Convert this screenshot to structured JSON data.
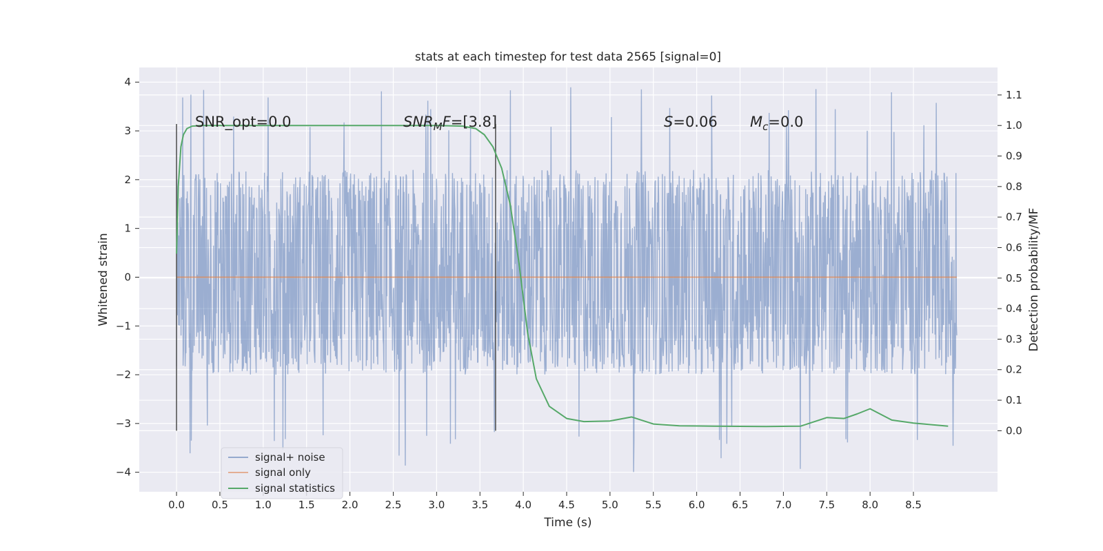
{
  "chart_data": {
    "type": "line",
    "title": "stats at each timestep for test data 2565 [signal=0]",
    "xlabel": "Time (s)",
    "ylabel": "Whitened strain",
    "y2label": "Detection probability/MF",
    "xlim": [
      -0.43,
      9.47
    ],
    "ylim": [
      -4.4,
      4.3
    ],
    "y2lim": [
      -0.2,
      1.19
    ],
    "xticks": [
      0.0,
      0.5,
      1.0,
      1.5,
      2.0,
      2.5,
      3.0,
      3.5,
      4.0,
      4.5,
      5.0,
      5.5,
      6.0,
      6.5,
      7.0,
      7.5,
      8.0,
      8.5
    ],
    "xtick_labels": [
      "0.0",
      "0.5",
      "1.0",
      "1.5",
      "2.0",
      "2.5",
      "3.0",
      "3.5",
      "4.0",
      "4.5",
      "5.0",
      "5.5",
      "6.0",
      "6.5",
      "7.0",
      "7.5",
      "8.0",
      "8.5"
    ],
    "yticks": [
      -4,
      -3,
      -2,
      -1,
      0,
      1,
      2,
      3,
      4
    ],
    "ytick_labels": [
      "−4",
      "−3",
      "−2",
      "−1",
      "0",
      "1",
      "2",
      "3",
      "4"
    ],
    "y2ticks": [
      0.0,
      0.1,
      0.2,
      0.3,
      0.4,
      0.5,
      0.6,
      0.7,
      0.8,
      0.9,
      1.0,
      1.1
    ],
    "y2tick_labels": [
      "0.0",
      "0.1",
      "0.2",
      "0.3",
      "0.4",
      "0.5",
      "0.6",
      "0.7",
      "0.8",
      "0.9",
      "1.0",
      "1.1"
    ],
    "grid": true,
    "legend_position": "lower-left",
    "colors": {
      "plot_bg": "#eaeaf2",
      "grid": "#ffffff",
      "noise": "#4c72b0",
      "signal": "#dd8452",
      "stats": "#55a868",
      "vline": "#555555"
    },
    "series": [
      {
        "name": "signal+ noise",
        "axis": "left",
        "x_range": [
          0.0,
          9.0
        ],
        "envelope_typical": [
          -2.0,
          2.2
        ],
        "peak_range": [
          -4.0,
          3.9
        ]
      },
      {
        "name": "signal only",
        "axis": "left",
        "x": [
          0.0,
          9.0
        ],
        "y": [
          0.0,
          0.0
        ]
      },
      {
        "name": "signal statistics",
        "axis": "right",
        "x": [
          0.0,
          0.02,
          0.05,
          0.08,
          0.12,
          0.18,
          0.3,
          1.0,
          2.0,
          3.0,
          3.3,
          3.45,
          3.55,
          3.65,
          3.75,
          3.85,
          3.95,
          4.05,
          4.15,
          4.3,
          4.5,
          4.7,
          5.0,
          5.25,
          5.5,
          5.8,
          6.2,
          6.8,
          7.2,
          7.5,
          7.7,
          7.85,
          8.0,
          8.25,
          8.5,
          8.9
        ],
        "y": [
          0.58,
          0.8,
          0.93,
          0.97,
          0.99,
          0.998,
          1.0,
          1.0,
          1.0,
          1.0,
          0.998,
          0.99,
          0.97,
          0.93,
          0.86,
          0.74,
          0.55,
          0.32,
          0.17,
          0.08,
          0.04,
          0.03,
          0.032,
          0.045,
          0.022,
          0.016,
          0.015,
          0.014,
          0.015,
          0.043,
          0.04,
          0.055,
          0.072,
          0.035,
          0.025,
          0.015
        ]
      }
    ],
    "vlines": [
      0.0,
      3.68
    ],
    "annotations": [
      {
        "text": "SNR_opt=0.0",
        "x": 0.2,
        "y": 3.05
      },
      {
        "text": "SNR_MF=[3.8]",
        "x": 2.6,
        "y": 3.05
      },
      {
        "text": "S=0.06",
        "x": 5.6,
        "y": 3.05
      },
      {
        "text": "M_c=0.0",
        "x": 6.6,
        "y": 3.05
      }
    ]
  },
  "annotation_parts": {
    "snr_opt": "SNR_opt=0.0",
    "snr_mf_sym": "SNR",
    "snr_mf_sub": "M",
    "snr_mf_f": "F",
    "snr_mf_val": "=[3.8]",
    "s_sym": "S",
    "s_val": "=0.06",
    "mc_sym": "M",
    "mc_sub": "c",
    "mc_val": "=0.0"
  }
}
